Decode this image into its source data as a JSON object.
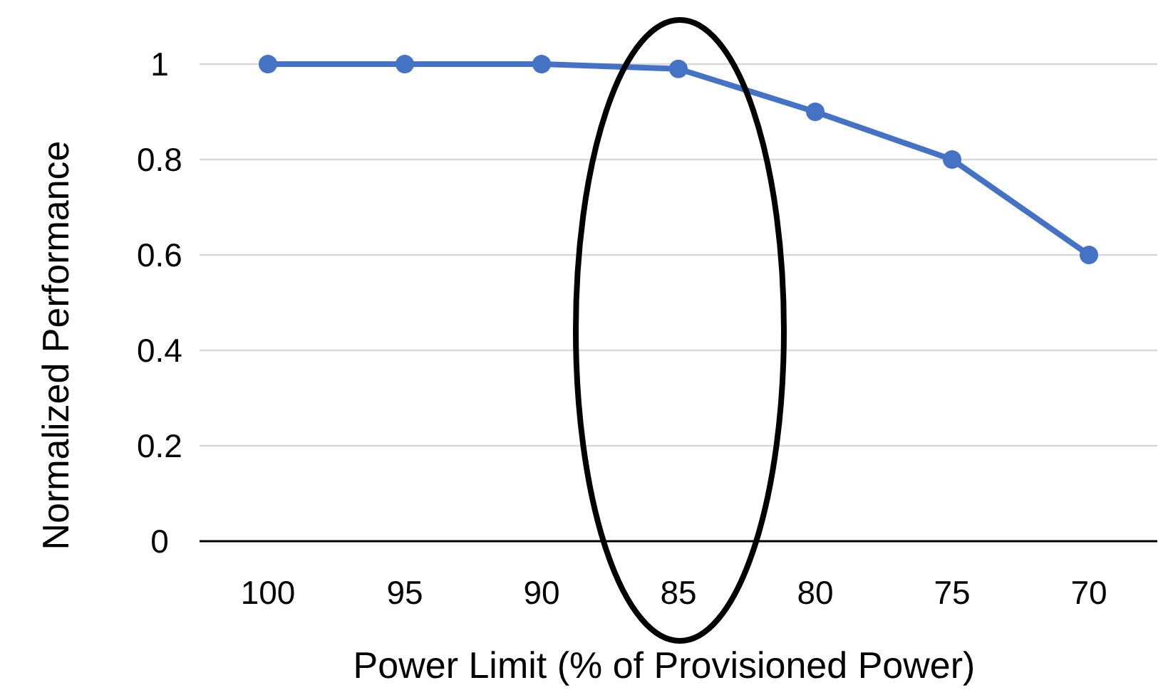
{
  "chart_data": {
    "type": "line",
    "xlabel": "Power Limit (% of Provisioned Power)",
    "ylabel": "Normalized Performance",
    "categories": [
      "100",
      "95",
      "90",
      "85",
      "80",
      "75",
      "70"
    ],
    "series": [
      {
        "color": "#4472c4",
        "values": [
          1,
          1,
          1,
          0.99,
          0.9,
          0.8,
          0.6
        ]
      }
    ],
    "ylim": [
      0,
      1
    ],
    "yticks": [
      0,
      0.2,
      0.4,
      0.6,
      0.8,
      1
    ],
    "grid": "y",
    "marker": "circle",
    "line_style": "solid"
  }
}
